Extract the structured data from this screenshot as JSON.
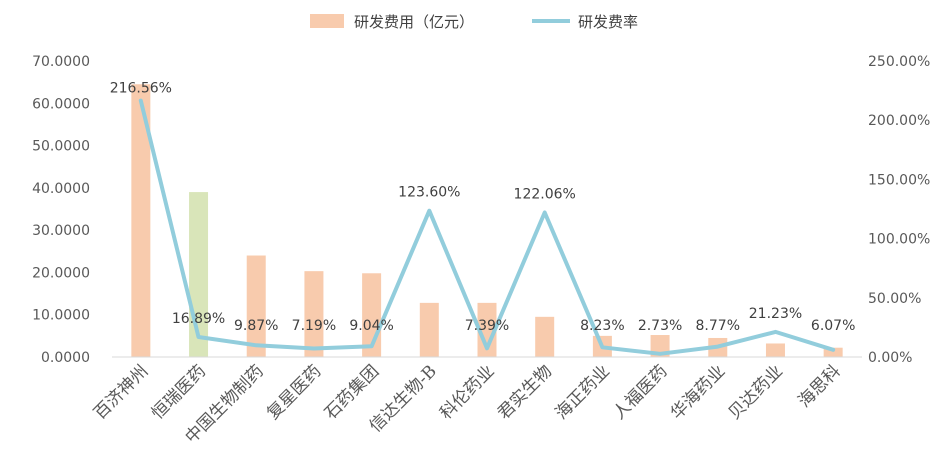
{
  "chart_data": {
    "type": "bar+line",
    "categories": [
      "百济神州",
      "恒瑞医药",
      "中国生物制药",
      "复星医药",
      "石药集团",
      "信达生物-B",
      "科伦药业",
      "君实生物",
      "海正药业",
      "人福医药",
      "华海药业",
      "贝达药业",
      "海思科"
    ],
    "series": [
      {
        "name": "研发费用（亿元）",
        "type": "bar",
        "axis": "left",
        "values": [
          64.5,
          39.0,
          24.0,
          20.3,
          19.8,
          12.8,
          12.8,
          9.5,
          5.0,
          5.2,
          4.5,
          3.2,
          2.2
        ],
        "color": "#F8CBAD",
        "highlight": {
          "index": 1,
          "color": "#D9E5B9"
        }
      },
      {
        "name": "研发费率",
        "type": "line",
        "axis": "right",
        "values": [
          216.56,
          16.89,
          9.87,
          7.19,
          9.04,
          123.6,
          7.39,
          122.06,
          8.23,
          2.73,
          8.77,
          21.23,
          6.07
        ],
        "labels": [
          "216.56%",
          "16.89%",
          "9.87%",
          "7.19%",
          "9.04%",
          "123.60%",
          "7.39%",
          "122.06%",
          "8.23%",
          "2.73%",
          "8.77%",
          "21.23%",
          "6.07%"
        ],
        "color": "#92CDDC"
      }
    ],
    "left_axis": {
      "min": 0,
      "max": 70,
      "step": 10,
      "tick_labels": [
        "0.0000",
        "10.0000",
        "20.0000",
        "30.0000",
        "40.0000",
        "50.0000",
        "60.0000",
        "70.0000"
      ]
    },
    "right_axis": {
      "min": 0,
      "max": 250,
      "step": 50,
      "tick_labels": [
        "0.00%",
        "50.00%",
        "100.00%",
        "150.00%",
        "200.00%",
        "250.00%"
      ]
    },
    "legend_position": "top",
    "grid": false
  }
}
